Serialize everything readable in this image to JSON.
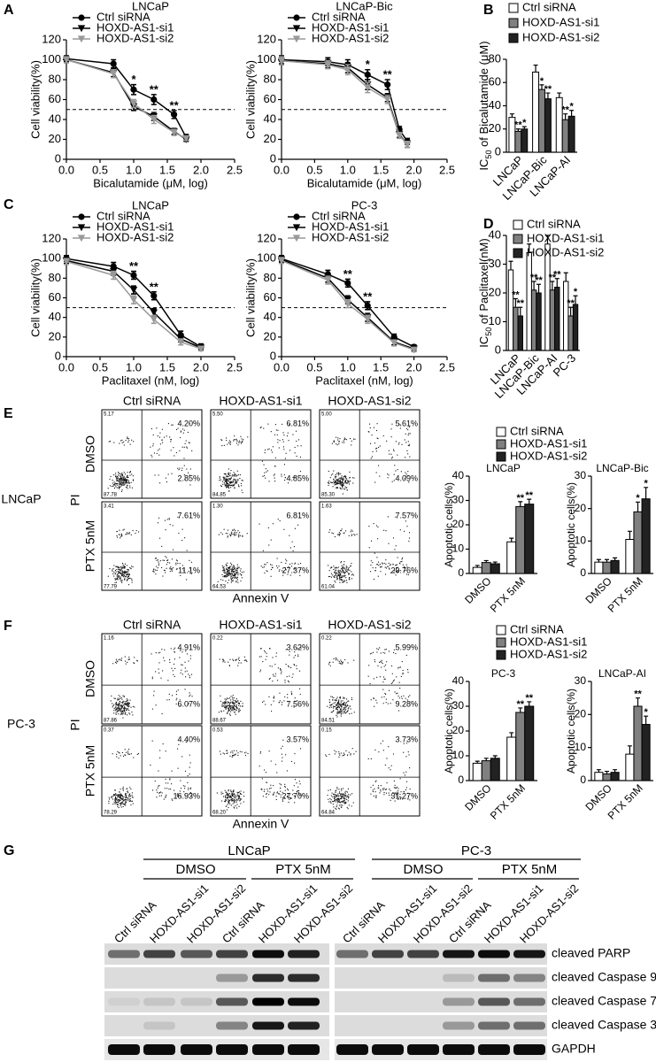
{
  "panel_labels": [
    "A",
    "B",
    "C",
    "D",
    "E",
    "F",
    "G"
  ],
  "chart_data": [
    {
      "type": "line",
      "title": "LNCaP",
      "xlabel": "Bicalutamide (μM, log)",
      "ylabel": "Cell viability(%)",
      "x": [
        0,
        0.7,
        1,
        1.3,
        1.6,
        1.78
      ],
      "xlim": [
        0,
        2.5
      ],
      "xticks": [
        {
          "value": 0,
          "label": "0.0"
        },
        0.5,
        {
          "value": 1,
          "label": "1.0"
        },
        1.5,
        {
          "value": 2,
          "label": "2.0"
        },
        2.5
      ],
      "ylim": [
        0,
        120
      ],
      "yticks": [
        0,
        20,
        40,
        60,
        80,
        100,
        120
      ],
      "reference_line": 50,
      "legend": true,
      "series": [
        {
          "name": "Ctrl siRNA",
          "color": "#000000",
          "marker": "circle",
          "values": [
            101,
            96,
            70,
            60,
            45,
            22
          ],
          "errors": [
            3,
            4,
            5,
            5,
            4,
            3
          ]
        },
        {
          "name": "HOXD-AS1-si1",
          "color": "#000000",
          "marker": "triangle-down",
          "values": [
            100,
            87,
            53,
            43,
            28,
            20
          ],
          "errors": [
            3,
            4,
            4,
            4,
            3,
            2
          ]
        },
        {
          "name": "HOXD-AS1-si2",
          "color": "#999999",
          "marker": "triangle-down",
          "values": [
            100,
            86,
            56,
            40,
            27,
            21
          ],
          "errors": [
            3,
            4,
            4,
            4,
            3,
            2
          ]
        }
      ],
      "annotations": [
        {
          "x": 1,
          "text": "*"
        },
        {
          "x": 1.3,
          "text": "**"
        },
        {
          "x": 1.6,
          "text": "**"
        }
      ]
    },
    {
      "type": "line",
      "title": "LNCaP-Bic",
      "xlabel": "Bicalutamide (μM, log)",
      "ylabel": "Cell viability(%)",
      "x": [
        0,
        0.7,
        1,
        1.3,
        1.6,
        1.78,
        1.9
      ],
      "xlim": [
        0,
        2.5
      ],
      "xticks": [
        {
          "value": 0,
          "label": "0.0"
        },
        0.5,
        {
          "value": 1,
          "label": "1.0"
        },
        1.5,
        {
          "value": 2,
          "label": "2.0"
        },
        2.5
      ],
      "ylim": [
        0,
        120
      ],
      "yticks": [
        0,
        20,
        40,
        60,
        80,
        100,
        120
      ],
      "reference_line": 50,
      "legend": true,
      "series": [
        {
          "name": "Ctrl siRNA",
          "color": "#000000",
          "marker": "circle",
          "values": [
            100,
            98,
            95,
            85,
            75,
            30,
            18
          ],
          "errors": [
            4,
            4,
            5,
            5,
            5,
            3,
            3
          ]
        },
        {
          "name": "HOXD-AS1-si1",
          "color": "#000000",
          "marker": "triangle-down",
          "values": [
            99,
            96,
            92,
            75,
            62,
            25,
            15
          ],
          "errors": [
            4,
            4,
            5,
            5,
            4,
            3,
            3
          ]
        },
        {
          "name": "HOXD-AS1-si2",
          "color": "#999999",
          "marker": "triangle-down",
          "values": [
            99,
            95,
            90,
            72,
            60,
            24,
            15
          ],
          "errors": [
            4,
            4,
            5,
            5,
            4,
            3,
            3
          ]
        }
      ],
      "annotations": [
        {
          "x": 1.3,
          "text": "*"
        },
        {
          "x": 1.6,
          "text": "**"
        }
      ]
    },
    {
      "type": "bar",
      "ylabel": [
        "IC",
        "50",
        " of Bicalutamide (μM)"
      ],
      "categories": [
        "LNCaP",
        "LNCaP-Bic",
        "LNCaP-AI"
      ],
      "ylim": [
        0,
        80
      ],
      "yticks": [
        0,
        20,
        40,
        60,
        80
      ],
      "legend": true,
      "series": [
        {
          "name": "Ctrl siRNA",
          "color": "#ffffff",
          "values": [
            30,
            69,
            47
          ],
          "errors": [
            3,
            6,
            4
          ]
        },
        {
          "name": "HOXD-AS1-si1",
          "color": "#808080",
          "values": [
            18,
            54,
            28
          ],
          "errors": [
            2,
            4,
            5
          ]
        },
        {
          "name": "HOXD-AS1-si2",
          "color": "#222222",
          "values": [
            20,
            46,
            31
          ],
          "errors": [
            2,
            5,
            5
          ]
        }
      ],
      "annotations": [
        {
          "series": 1,
          "category": 0,
          "text": "**"
        },
        {
          "series": 2,
          "category": 0,
          "text": "*"
        },
        {
          "series": 1,
          "category": 1,
          "text": "*"
        },
        {
          "series": 2,
          "category": 1,
          "text": "**"
        },
        {
          "series": 1,
          "category": 2,
          "text": "**"
        },
        {
          "series": 2,
          "category": 2,
          "text": "*"
        }
      ]
    },
    {
      "type": "line",
      "title": "LNCaP",
      "xlabel": "Paclitaxel (nM, log)",
      "ylabel": "Cell viability(%)",
      "x": [
        0,
        0.7,
        1,
        1.3,
        1.7,
        2
      ],
      "xlim": [
        0,
        2.5
      ],
      "xticks": [
        {
          "value": 0,
          "label": "0.0"
        },
        0.5,
        {
          "value": 1,
          "label": "1.0"
        },
        1.5,
        {
          "value": 2,
          "label": "2.0"
        },
        2.5
      ],
      "ylim": [
        0,
        120
      ],
      "yticks": [
        0,
        20,
        40,
        60,
        80,
        100,
        120
      ],
      "reference_line": 50,
      "legend": true,
      "series": [
        {
          "name": "Ctrl siRNA",
          "color": "#000000",
          "marker": "circle",
          "values": [
            100,
            92,
            83,
            62,
            22,
            10
          ],
          "errors": [
            3,
            4,
            4,
            4,
            4,
            3
          ]
        },
        {
          "name": "HOXD-AS1-si1",
          "color": "#000000",
          "marker": "triangle-down",
          "values": [
            98,
            87,
            68,
            45,
            18,
            9
          ],
          "errors": [
            3,
            4,
            4,
            4,
            3,
            2
          ]
        },
        {
          "name": "HOXD-AS1-si2",
          "color": "#999999",
          "marker": "triangle-down",
          "values": [
            97,
            83,
            58,
            38,
            15,
            8
          ],
          "errors": [
            3,
            4,
            4,
            4,
            3,
            2
          ]
        }
      ],
      "annotations": [
        {
          "x": 1,
          "text": "**"
        },
        {
          "x": 1.3,
          "text": "**"
        }
      ]
    },
    {
      "type": "line",
      "title": "PC-3",
      "xlabel": "Paclitaxel (nM, log)",
      "ylabel": "Cell viability(%)",
      "x": [
        0,
        0.7,
        1,
        1.3,
        1.7,
        2
      ],
      "xlim": [
        0,
        2.5
      ],
      "xticks": [
        {
          "value": 0,
          "label": "0.0"
        },
        0.5,
        {
          "value": 1,
          "label": "1.0"
        },
        1.5,
        {
          "value": 2,
          "label": "2.0"
        },
        2.5
      ],
      "ylim": [
        0,
        120
      ],
      "yticks": [
        0,
        20,
        40,
        60,
        80,
        100,
        120
      ],
      "reference_line": 50,
      "legend": true,
      "series": [
        {
          "name": "Ctrl siRNA",
          "color": "#000000",
          "marker": "circle",
          "values": [
            100,
            84,
            75,
            52,
            20,
            10
          ],
          "errors": [
            3,
            4,
            4,
            4,
            3,
            2
          ]
        },
        {
          "name": "HOXD-AS1-si1",
          "color": "#000000",
          "marker": "triangle-down",
          "values": [
            99,
            80,
            58,
            40,
            15,
            8
          ],
          "errors": [
            3,
            4,
            4,
            4,
            3,
            2
          ]
        },
        {
          "name": "HOXD-AS1-si2",
          "color": "#999999",
          "marker": "triangle-down",
          "values": [
            98,
            78,
            54,
            38,
            14,
            7
          ],
          "errors": [
            3,
            4,
            4,
            4,
            3,
            2
          ]
        }
      ],
      "annotations": [
        {
          "x": 1,
          "text": "**"
        },
        {
          "x": 1.3,
          "text": "**"
        }
      ]
    },
    {
      "type": "bar",
      "ylabel": [
        "IC",
        "50",
        " of Paclitaxel(nM)"
      ],
      "categories": [
        "LNCaP",
        "LNCaP-Bic",
        "LNCaP-AI",
        "PC-3"
      ],
      "ylim": [
        0,
        40
      ],
      "yticks": [
        0,
        10,
        20,
        30,
        40
      ],
      "legend": true,
      "series": [
        {
          "name": "Ctrl siRNA",
          "color": "#ffffff",
          "values": [
            28,
            34,
            37,
            24
          ],
          "errors": [
            3,
            3,
            3,
            3
          ]
        },
        {
          "name": "HOXD-AS1-si1",
          "color": "#808080",
          "values": [
            15,
            21,
            21,
            12
          ],
          "errors": [
            3,
            3,
            3,
            3
          ]
        },
        {
          "name": "HOXD-AS1-si2",
          "color": "#222222",
          "values": [
            12,
            20,
            22,
            16
          ],
          "errors": [
            3,
            3,
            3,
            3
          ]
        }
      ],
      "annotations": [
        {
          "series": 1,
          "category": 0,
          "text": "**"
        },
        {
          "series": 2,
          "category": 0,
          "text": "**"
        },
        {
          "series": 1,
          "category": 1,
          "text": "**"
        },
        {
          "series": 2,
          "category": 1,
          "text": "**"
        },
        {
          "series": 1,
          "category": 2,
          "text": "**"
        },
        {
          "series": 2,
          "category": 2,
          "text": "**"
        },
        {
          "series": 1,
          "category": 3,
          "text": "**"
        },
        {
          "series": 2,
          "category": 3,
          "text": "*"
        }
      ]
    },
    {
      "type": "bar",
      "title": "LNCaP",
      "ylabel": "Apoptotic cells(%)",
      "categories": [
        "DMSO",
        "PTX 5nM"
      ],
      "ylim": [
        0,
        40
      ],
      "yticks": [
        0,
        10,
        20,
        30,
        40
      ],
      "legend": true,
      "series": [
        {
          "name": "Ctrl siRNA",
          "color": "#ffffff",
          "values": [
            2.5,
            13
          ],
          "errors": [
            0.8,
            1.5
          ]
        },
        {
          "name": "HOXD-AS1-si1",
          "color": "#808080",
          "values": [
            4.5,
            27.5
          ],
          "errors": [
            0.8,
            2
          ]
        },
        {
          "name": "HOXD-AS1-si2",
          "color": "#222222",
          "values": [
            4,
            28.5
          ],
          "errors": [
            0.7,
            2
          ]
        }
      ],
      "annotations": [
        {
          "series": 1,
          "category": 1,
          "text": "**"
        },
        {
          "series": 2,
          "category": 1,
          "text": "**"
        }
      ]
    },
    {
      "type": "bar",
      "title": "LNCaP-Bic",
      "ylabel": "Apoptotic cells(%)",
      "categories": [
        "DMSO",
        "PTX 5nM"
      ],
      "ylim": [
        0,
        30
      ],
      "yticks": [
        0,
        10,
        20,
        30
      ],
      "series": [
        {
          "color": "#ffffff",
          "values": [
            3.5,
            10.5
          ],
          "errors": [
            0.8,
            2.5
          ]
        },
        {
          "color": "#808080",
          "values": [
            3.5,
            19
          ],
          "errors": [
            0.8,
            3
          ]
        },
        {
          "color": "#222222",
          "values": [
            4,
            23
          ],
          "errors": [
            0.8,
            3.5
          ]
        }
      ],
      "annotations": [
        {
          "series": 1,
          "category": 1,
          "text": "*"
        },
        {
          "series": 2,
          "category": 1,
          "text": "*"
        }
      ]
    },
    {
      "type": "bar",
      "title": "PC-3",
      "ylabel": "Apoptotic cells(%)",
      "categories": [
        "DMSO",
        "PTX 5nM"
      ],
      "ylim": [
        0,
        40
      ],
      "yticks": [
        0,
        10,
        20,
        30,
        40
      ],
      "legend": true,
      "series": [
        {
          "name": "Ctrl siRNA",
          "color": "#ffffff",
          "values": [
            7,
            17.5
          ],
          "errors": [
            0.8,
            1.8
          ]
        },
        {
          "name": "HOXD-AS1-si1",
          "color": "#808080",
          "values": [
            8,
            27.5
          ],
          "errors": [
            1,
            1.8
          ]
        },
        {
          "name": "HOXD-AS1-si2",
          "color": "#222222",
          "values": [
            9,
            30
          ],
          "errors": [
            1,
            1.8
          ]
        }
      ],
      "annotations": [
        {
          "series": 1,
          "category": 1,
          "text": "**"
        },
        {
          "series": 2,
          "category": 1,
          "text": "**"
        }
      ]
    },
    {
      "type": "bar",
      "title": "LNCaP-AI",
      "ylabel": "Apoptotic cells(%)",
      "categories": [
        "DMSO",
        "PTX 5nM"
      ],
      "ylim": [
        0,
        30
      ],
      "yticks": [
        0,
        10,
        20,
        30
      ],
      "series": [
        {
          "color": "#ffffff",
          "values": [
            2.5,
            8
          ],
          "errors": [
            0.8,
            2.5
          ]
        },
        {
          "color": "#808080",
          "values": [
            2,
            22.5
          ],
          "errors": [
            0.8,
            2.5
          ]
        },
        {
          "color": "#222222",
          "values": [
            2.5,
            17
          ],
          "errors": [
            0.8,
            2.5
          ]
        }
      ],
      "annotations": [
        {
          "series": 1,
          "category": 1,
          "text": "**"
        },
        {
          "series": 2,
          "category": 1,
          "text": "*"
        }
      ]
    }
  ],
  "flow": [
    {
      "cell_line": "LNCaP",
      "column_labels": [
        "Ctrl siRNA",
        "HOXD-AS1-si1",
        "HOXD-AS1-si2"
      ],
      "row_labels": [
        "DMSO",
        "PTX 5nM"
      ],
      "y_axis_label": "PI",
      "x_axis_label": "Annexin V",
      "plots": [
        [
          {
            "ul": "5.17",
            "ur": "4.20%",
            "lr": "2.85%",
            "ll": "87.78"
          },
          {
            "ul": "5.50",
            "ur": "6.81%",
            "lr": "4.85%",
            "ll": "84.85"
          },
          {
            "ul": "5.00",
            "ur": "5.61%",
            "lr": "4.09%",
            "ll": "85.30"
          }
        ],
        [
          {
            "ul": "3.41",
            "ur": "7.61%",
            "lr": "11.1%",
            "ll": "77.79"
          },
          {
            "ul": "1.30",
            "ur": "6.81%",
            "lr": "27.37%",
            "ll": "64.53"
          },
          {
            "ul": "1.63",
            "ur": "7.57%",
            "lr": "29.76%",
            "ll": "61.04"
          }
        ]
      ]
    },
    {
      "cell_line": "PC-3",
      "column_labels": [
        "Ctrl siRNA",
        "HOXD-AS1-si1",
        "HOXD-AS1-si2"
      ],
      "row_labels": [
        "DMSO",
        "PTX 5nM"
      ],
      "y_axis_label": "PI",
      "x_axis_label": "Annexin V",
      "plots": [
        [
          {
            "ul": "1.16",
            "ur": "4.91%",
            "lr": "6.07%",
            "ll": "87.86"
          },
          {
            "ul": "0.22",
            "ur": "3.62%",
            "lr": "7.56%",
            "ll": "88.67"
          },
          {
            "ul": "0.22",
            "ur": "5.99%",
            "lr": "9.28%",
            "ll": "84.51"
          }
        ],
        [
          {
            "ul": "0.37",
            "ur": "4.40%",
            "lr": "16.93%",
            "ll": "78.29"
          },
          {
            "ul": "0.53",
            "ur": "3.57%",
            "lr": "27.70%",
            "ll": "68.20"
          },
          {
            "ul": "0.15",
            "ur": "3.73%",
            "lr": "31.27%",
            "ll": "64.84"
          }
        ]
      ]
    }
  ],
  "western": {
    "groups": [
      {
        "cell_line": "LNCaP",
        "treatments": [
          "DMSO",
          "PTX 5nM"
        ],
        "lanes": [
          "Ctrl siRNA",
          "HOXD-AS1-si1",
          "HOXD-AS1-si2",
          "Ctrl siRNA",
          "HOXD-AS1-si1",
          "HOXD-AS1-si2"
        ]
      },
      {
        "cell_line": "PC-3",
        "treatments": [
          "DMSO",
          "PTX 5nM"
        ],
        "lanes": [
          "Ctrl siRNA",
          "HOXD-AS1-si1",
          "HOXD-AS1-si2",
          "Ctrl siRNA",
          "HOXD-AS1-si1",
          "HOXD-AS1-si2"
        ]
      }
    ],
    "proteins": [
      "cleaved PARP",
      "cleaved Caspase 9",
      "cleaved Caspase 7",
      "cleaved Caspase 3",
      "GAPDH"
    ]
  }
}
